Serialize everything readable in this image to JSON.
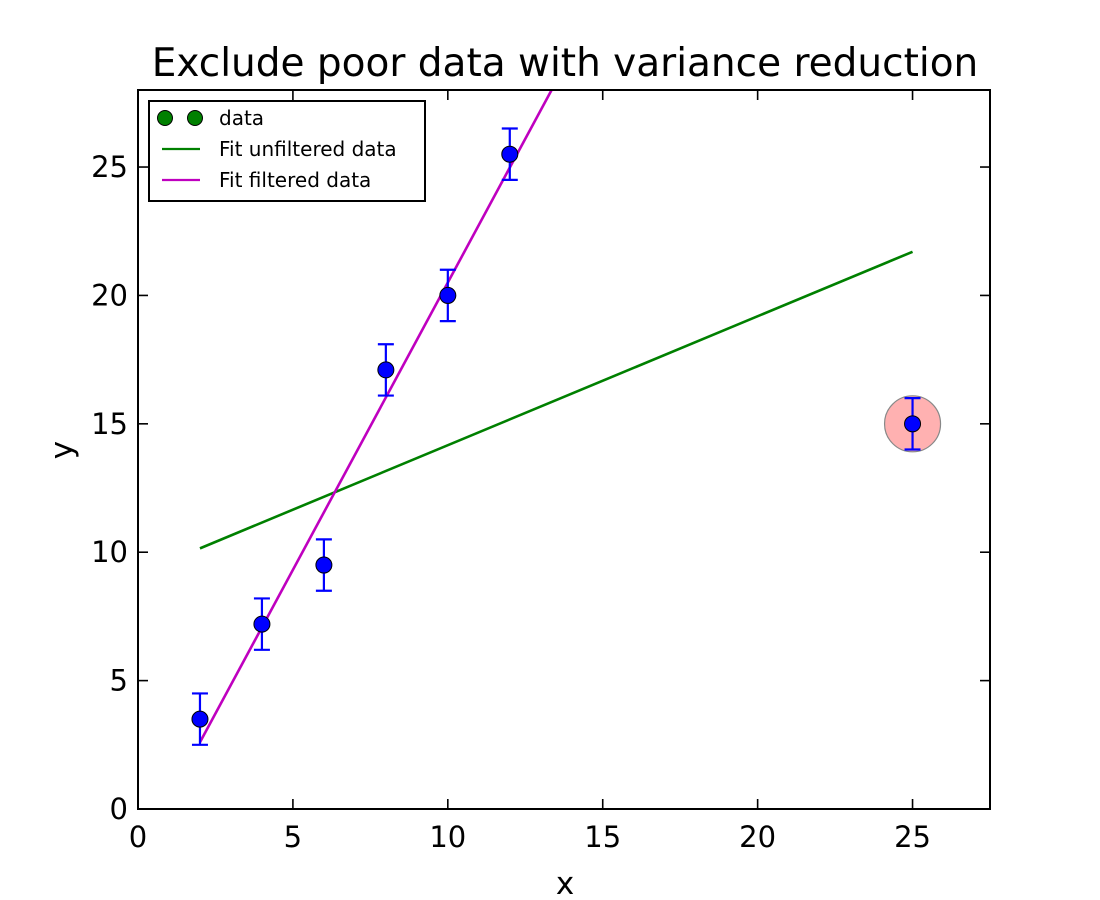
{
  "chart_data": {
    "type": "scatter",
    "title": "Exclude poor data with variance reduction",
    "xlabel": "x",
    "ylabel": "y",
    "xlim": [
      0,
      27.5
    ],
    "ylim": [
      0,
      28
    ],
    "xticks": [
      0,
      5,
      10,
      15,
      20,
      25
    ],
    "yticks": [
      0,
      5,
      10,
      15,
      20,
      25
    ],
    "grid": false,
    "legend_position": "top-left",
    "legend": [
      {
        "label": "data",
        "kind": "marker",
        "color": "#008000"
      },
      {
        "label": "Fit unfiltered data",
        "kind": "line",
        "color": "#008000"
      },
      {
        "label": "Fit filtered data",
        "kind": "line",
        "color": "#bf00bf"
      }
    ],
    "series": [
      {
        "kind": "errorbar",
        "color": "#0000ff",
        "x": [
          2,
          4,
          6,
          8,
          10,
          12,
          25
        ],
        "y": [
          3.5,
          7.2,
          9.5,
          17.1,
          20.0,
          25.5,
          15.0
        ],
        "yerr": [
          1,
          1,
          1,
          1,
          1,
          1,
          1
        ]
      },
      {
        "kind": "line",
        "color": "#008000",
        "x": [
          2,
          25
        ],
        "y": [
          10.15,
          21.7
        ]
      },
      {
        "kind": "line",
        "color": "#bf00bf",
        "x": [
          2,
          13.35
        ],
        "y": [
          2.6,
          28
        ]
      }
    ],
    "highlight": {
      "x": 25,
      "y": 15.0,
      "fill": "#ff9e9e",
      "opacity": 0.8,
      "stroke": "#888888"
    }
  }
}
